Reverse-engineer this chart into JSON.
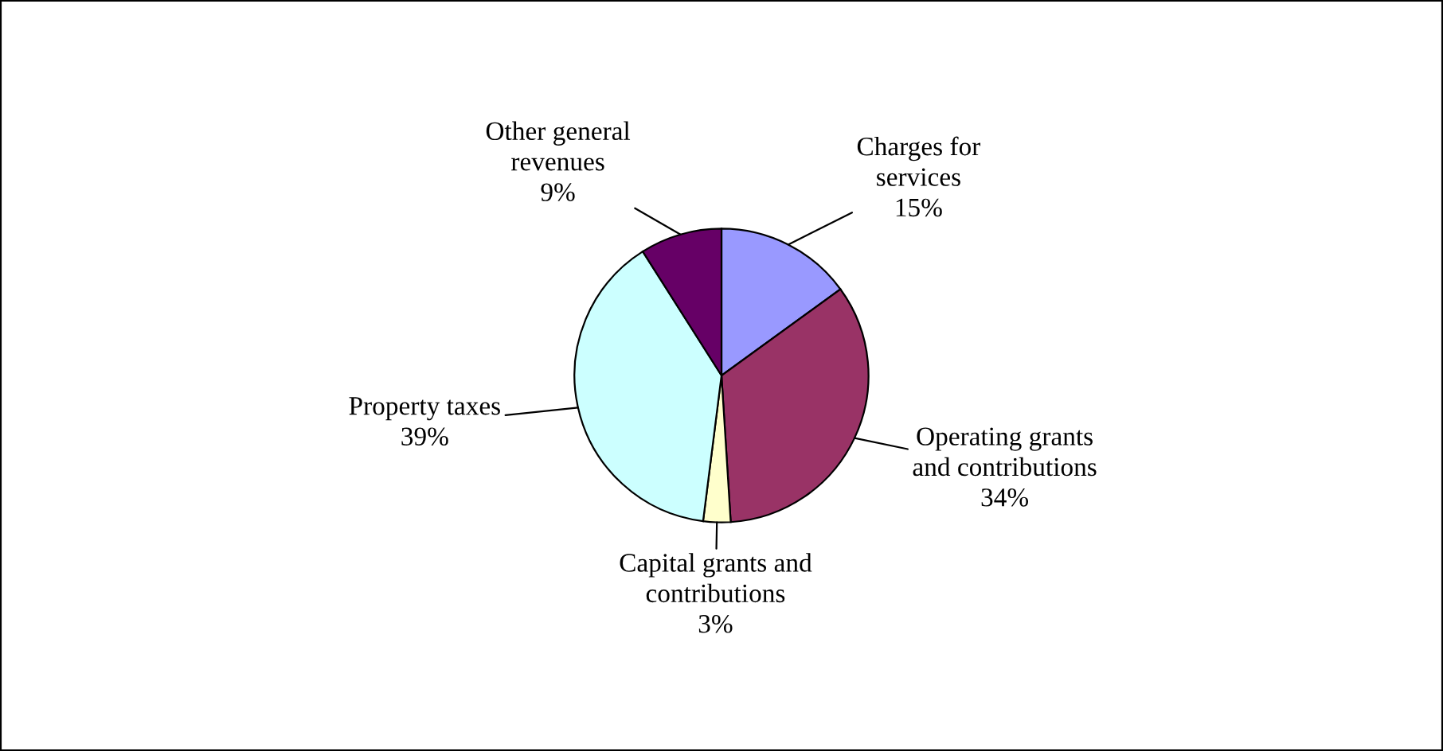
{
  "chart_data": {
    "type": "pie",
    "categories": [
      "Charges for\nservices",
      "Operating grants\nand contributions",
      "Capital grants and\ncontributions",
      "Property taxes",
      "Other general\nrevenues"
    ],
    "values": [
      15,
      34,
      3,
      39,
      9
    ],
    "value_labels": [
      "15%",
      "34%",
      "3%",
      "39%",
      "9%"
    ],
    "colors": [
      "#9999ff",
      "#993366",
      "#ffffcc",
      "#ccffff",
      "#660066"
    ],
    "legend": false
  }
}
